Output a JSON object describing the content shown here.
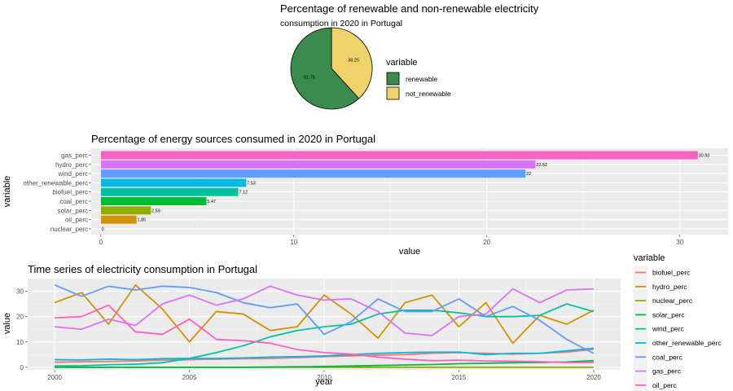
{
  "chart_data": [
    {
      "type": "pie",
      "title": "Percentage of renewable and non-renewable electricity",
      "subtitle": "consumption in 2020 in Portugal",
      "legend_title": "variable",
      "legend_position": "right",
      "categories": [
        "renewable",
        "not_renewable"
      ],
      "values": [
        61.76,
        38.25
      ],
      "colors": [
        "#3B8B4F",
        "#EDD36A"
      ]
    },
    {
      "type": "bar",
      "orientation": "horizontal",
      "title": "Percentage of energy sources consumed in 2020 in Portugal",
      "xlabel": "value",
      "ylabel": "variable",
      "xlim": [
        -0.5,
        32.5
      ],
      "xticks": [
        0,
        10,
        20,
        30
      ],
      "categories": [
        "gas_perc",
        "hydro_perc",
        "wind_perc",
        "other_renewable_perc",
        "biofuel_perc",
        "coal_perc",
        "solar_perc",
        "oil_perc",
        "nuclear_perc"
      ],
      "values": [
        30.93,
        22.52,
        22,
        7.53,
        7.12,
        5.47,
        2.59,
        1.85,
        0
      ],
      "value_labels": [
        "30.93",
        "22.52",
        "22",
        "7.53",
        "7.12",
        "5.47",
        "2.59",
        "1.85",
        "0"
      ],
      "colors": [
        "#FF61C3",
        "#DB72FB",
        "#619CFF",
        "#00B9E3",
        "#00C19F",
        "#00BA38",
        "#93AA00",
        "#D39200",
        "#F8766D"
      ],
      "grid": true
    },
    {
      "type": "line",
      "title": "Time series of electricity consumption in Portugal",
      "xlabel": "year",
      "ylabel": "value",
      "xlim": [
        1999,
        2021
      ],
      "ylim": [
        -1,
        35
      ],
      "xticks": [
        2000,
        2005,
        2010,
        2015,
        2020
      ],
      "yticks": [
        0,
        10,
        20,
        30
      ],
      "legend_title": "variable",
      "legend_position": "right",
      "grid": true,
      "x": [
        2000,
        2001,
        2002,
        2003,
        2004,
        2005,
        2006,
        2007,
        2008,
        2009,
        2010,
        2011,
        2012,
        2013,
        2014,
        2015,
        2016,
        2017,
        2018,
        2019,
        2020
      ],
      "series": [
        {
          "name": "biofuel_perc",
          "color": "#F8766D",
          "values": [
            2.0,
            2.2,
            2.3,
            2.5,
            2.8,
            3.0,
            3.2,
            3.4,
            3.5,
            3.8,
            4.2,
            4.5,
            4.8,
            5.0,
            5.5,
            5.8,
            5.5,
            5.2,
            5.5,
            6.0,
            7.12
          ]
        },
        {
          "name": "hydro_perc",
          "color": "#D39200",
          "values": [
            25.5,
            29.5,
            17,
            32.5,
            23,
            10,
            22,
            21,
            14.5,
            16,
            28.5,
            21,
            11.5,
            25.5,
            28.5,
            16,
            25.5,
            9.5,
            20.5,
            17,
            22.52
          ]
        },
        {
          "name": "nuclear_perc",
          "color": "#93AA00",
          "values": [
            0,
            0,
            0,
            0,
            0,
            0,
            0,
            0,
            0,
            0,
            0,
            0,
            0,
            0,
            0,
            0,
            0,
            0,
            0,
            0,
            0
          ]
        },
        {
          "name": "solar_perc",
          "color": "#00BA38",
          "values": [
            0,
            0,
            0,
            0,
            0,
            0,
            0,
            0,
            0.1,
            0.2,
            0.3,
            0.5,
            0.7,
            0.9,
            1.1,
            1.4,
            1.6,
            1.8,
            1.9,
            2.1,
            2.59
          ]
        },
        {
          "name": "wind_perc",
          "color": "#00C19F",
          "values": [
            0.5,
            0.6,
            1.0,
            1.2,
            1.8,
            3.5,
            5.8,
            8.5,
            12,
            14.5,
            16,
            17,
            21,
            22.5,
            22.5,
            21.5,
            20,
            20,
            20.5,
            25,
            22
          ]
        },
        {
          "name": "other_renewable_perc",
          "color": "#00B9E3",
          "values": [
            3.0,
            2.9,
            3.2,
            3.0,
            3.4,
            3.5,
            3.5,
            3.7,
            4.0,
            4.2,
            4.5,
            5.0,
            5.5,
            5.8,
            6.0,
            6.0,
            5.0,
            5.5,
            5.5,
            6.5,
            7.53
          ]
        },
        {
          "name": "coal_perc",
          "color": "#619CFF",
          "values": [
            32.5,
            28,
            32,
            30.5,
            32,
            31.5,
            29.5,
            25.5,
            23.5,
            25,
            13,
            18,
            27,
            22,
            22,
            27,
            20,
            24,
            18.5,
            11,
            5.47
          ]
        },
        {
          "name": "gas_perc",
          "color": "#DB72FB",
          "values": [
            16,
            15,
            19,
            16.5,
            25,
            28.5,
            24.5,
            27,
            32,
            28.5,
            26.5,
            27,
            22,
            13.5,
            12.5,
            20,
            21,
            31,
            25.5,
            30.5,
            30.93
          ]
        },
        {
          "name": "oil_perc",
          "color": "#FF61C3",
          "values": [
            19.5,
            20,
            24.5,
            14,
            13,
            19,
            11,
            10.5,
            9.5,
            7,
            5.8,
            5.2,
            4,
            3.2,
            2.6,
            2.8,
            2.5,
            2.4,
            2.2,
            1.9,
            1.85
          ]
        }
      ]
    }
  ]
}
